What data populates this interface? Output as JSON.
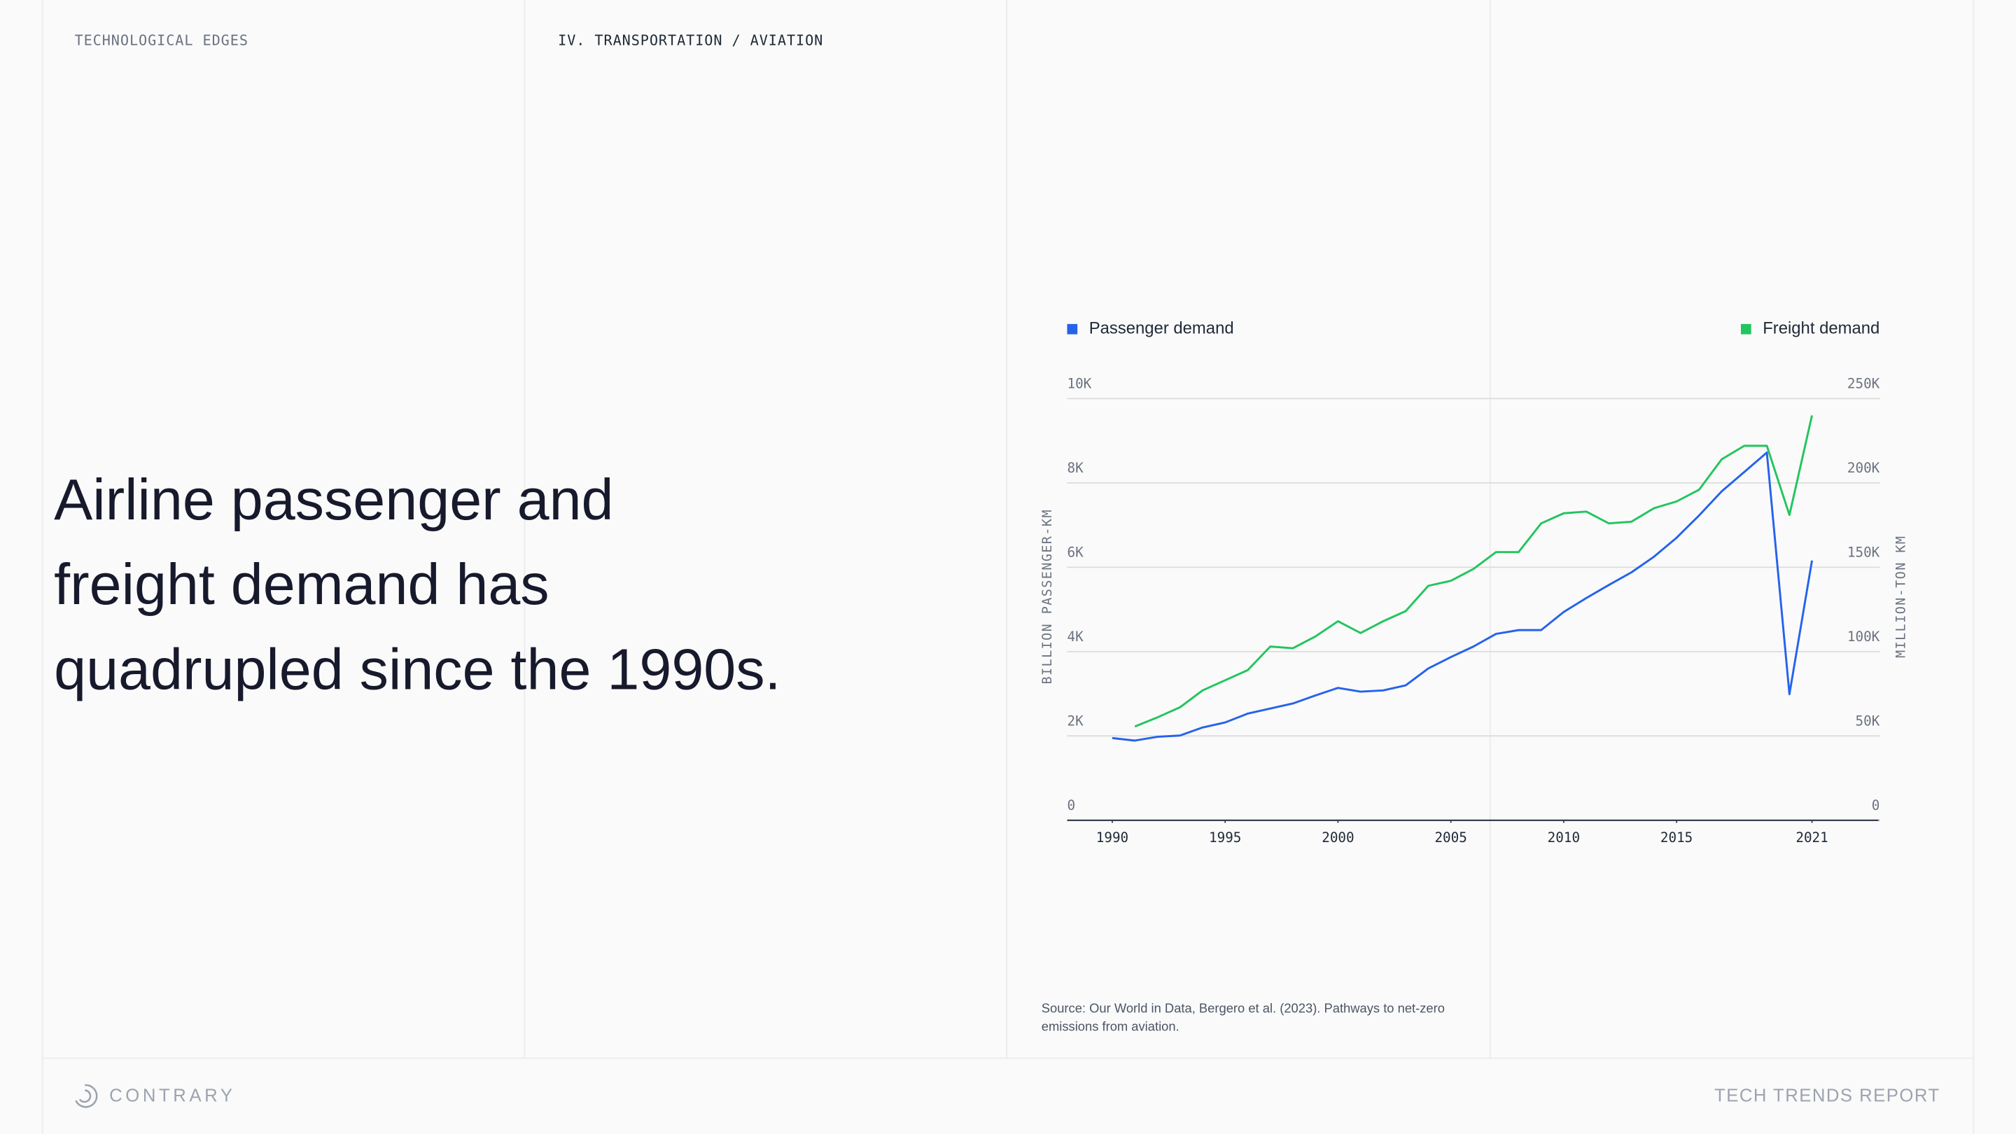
{
  "header": {
    "left": "TECHNOLOGICAL EDGES",
    "section": "IV. TRANSPORTATION / AVIATION"
  },
  "headline": [
    "Airline passenger and",
    "freight demand has",
    "quadrupled since the 1990s."
  ],
  "source": [
    "Source: Our World in Data, Bergero et al. (2023). Pathways to net-zero",
    "emissions from aviation."
  ],
  "footer": {
    "brand": "CONTRARY",
    "report": "TECH TRENDS REPORT"
  },
  "chart_data": {
    "type": "line",
    "y_label": "BILLION PASSENGER-KM",
    "y2_label": "MILLION-TON KM",
    "legend": "top",
    "grid": true,
    "x": [
      1990,
      1991,
      1992,
      1993,
      1994,
      1995,
      1996,
      1997,
      1998,
      1999,
      2000,
      2001,
      2002,
      2003,
      2004,
      2005,
      2006,
      2007,
      2008,
      2009,
      2010,
      2011,
      2012,
      2013,
      2014,
      2015,
      2016,
      2017,
      2018,
      2019,
      2020,
      2021
    ],
    "xlim": [
      1988,
      2024
    ],
    "xticks": [
      1990,
      1995,
      2000,
      2005,
      2010,
      2015,
      2021
    ],
    "ylim": [
      0,
      10000
    ],
    "yticks": [
      0,
      {
        "value": 2000,
        "label": "2K"
      },
      {
        "value": 4000,
        "label": "4K"
      },
      {
        "value": 6000,
        "label": "6K"
      },
      {
        "value": 8000,
        "label": "8K"
      },
      {
        "value": 10000,
        "label": "10K"
      }
    ],
    "y2lim": [
      0,
      250000
    ],
    "y2ticks": [
      0,
      {
        "value": 50000,
        "label": "50K"
      },
      {
        "value": 100000,
        "label": "100K"
      },
      {
        "value": 150000,
        "label": "150K"
      },
      {
        "value": 200000,
        "label": "200K"
      },
      {
        "value": 250000,
        "label": "250K"
      }
    ],
    "series": [
      {
        "name": "Passenger demand",
        "color": "#2563eb",
        "values": [
          1950,
          1890,
          1980,
          2010,
          2200,
          2320,
          2530,
          2650,
          2770,
          2960,
          3140,
          3050,
          3080,
          3200,
          3600,
          3870,
          4120,
          4420,
          4510,
          4510,
          4940,
          5270,
          5580,
          5880,
          6250,
          6700,
          7230,
          7800,
          8260,
          8720,
          2990,
          6160
        ]
      },
      {
        "name": "Freight demand",
        "color": "#22c55e",
        "axis": "y2",
        "values": [
          null,
          55600,
          61000,
          67000,
          77000,
          83000,
          89000,
          103000,
          102000,
          109000,
          118000,
          111000,
          118000,
          124000,
          139000,
          142000,
          149000,
          159000,
          159000,
          176000,
          182000,
          183000,
          176000,
          177000,
          185000,
          189000,
          196000,
          214000,
          222000,
          222000,
          181000,
          240000
        ]
      }
    ]
  }
}
